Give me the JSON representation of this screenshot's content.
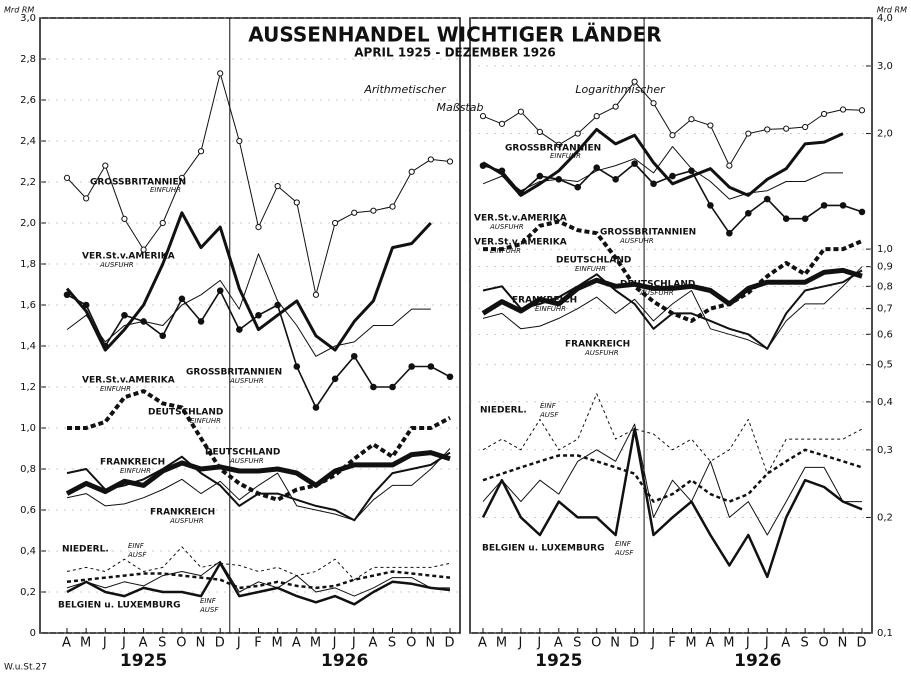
{
  "title": "AUSSENHANDEL WICHTIGER LÄNDER",
  "subtitle": "APRIL 1925 - DEZEMBER 1926",
  "scale_word": "Maßstab",
  "source": "W.u.St.27",
  "chart_data": [
    {
      "type": "line",
      "unit": "Mrd RM",
      "scale_note": "Arithmetischer",
      "log_scale": false,
      "years": [
        "1925",
        "1926"
      ],
      "categories": [
        "A",
        "M",
        "J",
        "J",
        "A",
        "S",
        "O",
        "N",
        "D",
        "J",
        "F",
        "M",
        "A",
        "M",
        "J",
        "J",
        "A",
        "S",
        "O",
        "N",
        "D"
      ],
      "ylim": [
        0,
        3.0
      ],
      "yticks": [
        0,
        {
          "value": 0.2,
          "label": "0,2"
        },
        {
          "value": 0.4,
          "label": "0,4"
        },
        {
          "value": 0.6,
          "label": "0,6"
        },
        {
          "value": 0.8,
          "label": "0,8"
        },
        {
          "value": 1.0,
          "label": "1,0"
        },
        {
          "value": 1.2,
          "label": "1,2"
        },
        {
          "value": 1.4,
          "label": "1,4"
        },
        {
          "value": 1.6,
          "label": "1,6"
        },
        {
          "value": 1.8,
          "label": "1,8"
        },
        {
          "value": 2.0,
          "label": "2,0"
        },
        {
          "value": 2.2,
          "label": "2,2"
        },
        {
          "value": 2.4,
          "label": "2,4"
        },
        {
          "value": 2.6,
          "label": "2,6"
        },
        {
          "value": 2.8,
          "label": "2,8"
        },
        {
          "value": 3.0,
          "label": "3,0"
        }
      ],
      "series": [
        {
          "name": "GROSSBRITANNIEN",
          "flow": "EINFUHR",
          "color": "#111",
          "width": 1,
          "dash": "",
          "marker": "open",
          "values": [
            2.22,
            2.12,
            2.28,
            2.02,
            1.87,
            2.0,
            2.22,
            2.35,
            2.73,
            2.4,
            1.98,
            2.18,
            2.1,
            1.65,
            2.0,
            2.05,
            2.06,
            2.08,
            2.25,
            2.31,
            2.3
          ]
        },
        {
          "name": "GROSSBRITANNIEN",
          "flow": "AUSFUHR",
          "color": "#111",
          "width": 1.6,
          "dash": "",
          "marker": "filled",
          "values": [
            1.65,
            1.6,
            1.4,
            1.55,
            1.52,
            1.45,
            1.63,
            1.52,
            1.67,
            1.48,
            1.55,
            1.6,
            1.3,
            1.1,
            1.24,
            1.35,
            1.2,
            1.2,
            1.3,
            1.3,
            1.25
          ]
        },
        {
          "name": "VER.St.v.AMERIKA",
          "flow": "AUSFUHR",
          "color": "#111",
          "width": 3,
          "dash": "",
          "marker": "none",
          "values": [
            1.68,
            1.57,
            1.38,
            1.48,
            1.6,
            1.8,
            2.05,
            1.88,
            1.98,
            1.68,
            1.48,
            1.55,
            1.62,
            1.45,
            1.38,
            1.52,
            1.62,
            1.88,
            1.9,
            2.0,
            null
          ]
        },
        {
          "name": "VER.St.v.AMERIKA",
          "flow": "EINFUHR",
          "color": "#111",
          "width": 1,
          "dash": "",
          "marker": "none",
          "values": [
            1.48,
            1.55,
            1.42,
            1.5,
            1.52,
            1.5,
            1.6,
            1.65,
            1.72,
            1.58,
            1.85,
            1.62,
            1.5,
            1.35,
            1.4,
            1.42,
            1.5,
            1.5,
            1.58,
            1.58,
            null
          ]
        },
        {
          "name": "DEUTSCHLAND",
          "flow": "EINFUHR",
          "color": "#111",
          "width": 4,
          "dash": "5 3",
          "marker": "none",
          "values": [
            1.0,
            1.0,
            1.03,
            1.15,
            1.18,
            1.12,
            1.1,
            0.95,
            0.8,
            0.73,
            0.68,
            0.65,
            0.7,
            0.72,
            0.77,
            0.85,
            0.92,
            0.86,
            1.0,
            1.0,
            1.05
          ]
        },
        {
          "name": "DEUTSCHLAND",
          "flow": "AUSFUHR",
          "color": "#111",
          "width": 5,
          "dash": "",
          "marker": "none",
          "values": [
            0.68,
            0.73,
            0.69,
            0.74,
            0.72,
            0.79,
            0.83,
            0.8,
            0.81,
            0.79,
            0.79,
            0.8,
            0.78,
            0.72,
            0.79,
            0.82,
            0.82,
            0.82,
            0.87,
            0.88,
            0.85
          ]
        },
        {
          "name": "FRANKREICH",
          "flow": "EINFUHR",
          "color": "#111",
          "width": 2,
          "dash": "",
          "marker": "none",
          "values": [
            0.78,
            0.8,
            0.7,
            0.72,
            0.75,
            0.8,
            0.86,
            0.78,
            0.72,
            0.62,
            0.68,
            0.68,
            0.65,
            0.62,
            0.6,
            0.55,
            0.68,
            0.78,
            0.8,
            0.82,
            0.88
          ]
        },
        {
          "name": "FRANKREICH",
          "flow": "AUSFUHR",
          "color": "#111",
          "width": 1,
          "dash": "",
          "marker": "none",
          "values": [
            0.66,
            0.68,
            0.62,
            0.63,
            0.66,
            0.7,
            0.75,
            0.68,
            0.74,
            0.65,
            0.72,
            0.78,
            0.62,
            0.6,
            0.58,
            0.55,
            0.65,
            0.72,
            0.72,
            0.8,
            0.9
          ]
        },
        {
          "name": "NIEDERL.",
          "flow": "EINF",
          "color": "#111",
          "width": 1,
          "dash": "3 3",
          "marker": "none",
          "values": [
            0.3,
            0.32,
            0.3,
            0.36,
            0.3,
            0.32,
            0.42,
            0.32,
            0.34,
            0.33,
            0.3,
            0.32,
            0.28,
            0.3,
            0.36,
            0.26,
            0.32,
            0.32,
            0.32,
            0.32,
            0.34
          ]
        },
        {
          "name": "NIEDERL.",
          "flow": "AUSF",
          "color": "#111",
          "width": 2.5,
          "dash": "4 3",
          "marker": "none",
          "values": [
            0.25,
            0.26,
            0.27,
            0.28,
            0.29,
            0.29,
            0.28,
            0.27,
            0.26,
            0.22,
            0.23,
            0.25,
            0.23,
            0.22,
            0.23,
            0.26,
            0.28,
            0.3,
            0.29,
            0.28,
            0.27
          ]
        },
        {
          "name": "BELGIEN u. LUXEMBURG",
          "flow": "EINF",
          "color": "#111",
          "width": 1,
          "dash": "",
          "marker": "none",
          "values": [
            0.22,
            0.25,
            0.22,
            0.25,
            0.23,
            0.28,
            0.3,
            0.28,
            0.35,
            0.2,
            0.25,
            0.22,
            0.28,
            0.2,
            0.22,
            0.18,
            0.22,
            0.27,
            0.27,
            0.22,
            0.22
          ]
        },
        {
          "name": "BELGIEN u. LUXEMBURG",
          "flow": "AUSF",
          "color": "#111",
          "width": 2.5,
          "dash": "",
          "marker": "none",
          "values": [
            0.2,
            0.25,
            0.2,
            0.18,
            0.22,
            0.2,
            0.2,
            0.18,
            0.34,
            0.18,
            0.2,
            0.22,
            0.18,
            0.15,
            0.18,
            0.14,
            0.2,
            0.25,
            0.24,
            0.22,
            0.21
          ]
        }
      ]
    },
    {
      "type": "line",
      "unit": "Mrd RM",
      "scale_note": "Logarithmischer",
      "log_scale": true,
      "years": [
        "1925",
        "1926"
      ],
      "categories": [
        "A",
        "M",
        "J",
        "J",
        "A",
        "S",
        "O",
        "N",
        "D",
        "J",
        "F",
        "M",
        "A",
        "M",
        "J",
        "J",
        "A",
        "S",
        "O",
        "N",
        "D"
      ],
      "ylim": [
        0.1,
        4.0
      ],
      "yticks": [
        {
          "value": 0.1,
          "label": "0,1"
        },
        {
          "value": 0.2,
          "label": "0,2"
        },
        {
          "value": 0.3,
          "label": "0,3"
        },
        {
          "value": 0.4,
          "label": "0,4"
        },
        {
          "value": 0.5,
          "label": "0,5"
        },
        {
          "value": 0.6,
          "label": "0,6"
        },
        {
          "value": 0.7,
          "label": "0,7"
        },
        {
          "value": 0.8,
          "label": "0,8"
        },
        {
          "value": 0.9,
          "label": "0,9"
        },
        {
          "value": 1.0,
          "label": "1,0"
        },
        {
          "value": 2.0,
          "label": "2,0"
        },
        {
          "value": 3.0,
          "label": "3,0"
        },
        {
          "value": 4.0,
          "label": "4,0"
        }
      ],
      "series": [
        {
          "name": "GROSSBRITANNIEN",
          "flow": "EINFUHR",
          "color": "#111",
          "width": 1,
          "dash": "",
          "marker": "open",
          "values": [
            2.22,
            2.12,
            2.28,
            2.02,
            1.87,
            2.0,
            2.22,
            2.35,
            2.73,
            2.4,
            1.98,
            2.18,
            2.1,
            1.65,
            2.0,
            2.05,
            2.06,
            2.08,
            2.25,
            2.31,
            2.3
          ]
        },
        {
          "name": "GROSSBRITANNIEN",
          "flow": "AUSFUHR",
          "color": "#111",
          "width": 1.6,
          "dash": "",
          "marker": "filled",
          "values": [
            1.65,
            1.6,
            1.4,
            1.55,
            1.52,
            1.45,
            1.63,
            1.52,
            1.67,
            1.48,
            1.55,
            1.6,
            1.3,
            1.1,
            1.24,
            1.35,
            1.2,
            1.2,
            1.3,
            1.3,
            1.25
          ]
        },
        {
          "name": "VER.St.v.AMERIKA",
          "flow": "AUSFUHR",
          "color": "#111",
          "width": 3,
          "dash": "",
          "marker": "none",
          "values": [
            1.68,
            1.57,
            1.38,
            1.48,
            1.6,
            1.8,
            2.05,
            1.88,
            1.98,
            1.68,
            1.48,
            1.55,
            1.62,
            1.45,
            1.38,
            1.52,
            1.62,
            1.88,
            1.9,
            2.0,
            null
          ]
        },
        {
          "name": "VER.St.v.AMERIKA",
          "flow": "EINFUHR",
          "color": "#111",
          "width": 1,
          "dash": "",
          "marker": "none",
          "values": [
            1.48,
            1.55,
            1.42,
            1.5,
            1.52,
            1.5,
            1.6,
            1.65,
            1.72,
            1.58,
            1.85,
            1.62,
            1.5,
            1.35,
            1.4,
            1.42,
            1.5,
            1.5,
            1.58,
            1.58,
            null
          ]
        },
        {
          "name": "DEUTSCHLAND",
          "flow": "EINFUHR",
          "color": "#111",
          "width": 4,
          "dash": "5 3",
          "marker": "none",
          "values": [
            1.0,
            1.0,
            1.03,
            1.15,
            1.18,
            1.12,
            1.1,
            0.95,
            0.8,
            0.73,
            0.68,
            0.65,
            0.7,
            0.72,
            0.77,
            0.85,
            0.92,
            0.86,
            1.0,
            1.0,
            1.05
          ]
        },
        {
          "name": "DEUTSCHLAND",
          "flow": "AUSFUHR",
          "color": "#111",
          "width": 5,
          "dash": "",
          "marker": "none",
          "values": [
            0.68,
            0.73,
            0.69,
            0.74,
            0.72,
            0.79,
            0.83,
            0.8,
            0.81,
            0.79,
            0.79,
            0.8,
            0.78,
            0.72,
            0.79,
            0.82,
            0.82,
            0.82,
            0.87,
            0.88,
            0.85
          ]
        },
        {
          "name": "FRANKREICH",
          "flow": "EINFUHR",
          "color": "#111",
          "width": 2,
          "dash": "",
          "marker": "none",
          "values": [
            0.78,
            0.8,
            0.7,
            0.72,
            0.75,
            0.8,
            0.86,
            0.78,
            0.72,
            0.62,
            0.68,
            0.68,
            0.65,
            0.62,
            0.6,
            0.55,
            0.68,
            0.78,
            0.8,
            0.82,
            0.88
          ]
        },
        {
          "name": "FRANKREICH",
          "flow": "AUSFUHR",
          "color": "#111",
          "width": 1,
          "dash": "",
          "marker": "none",
          "values": [
            0.66,
            0.68,
            0.62,
            0.63,
            0.66,
            0.7,
            0.75,
            0.68,
            0.74,
            0.65,
            0.72,
            0.78,
            0.62,
            0.6,
            0.58,
            0.55,
            0.65,
            0.72,
            0.72,
            0.8,
            0.9
          ]
        },
        {
          "name": "NIEDERL.",
          "flow": "EINF",
          "color": "#111",
          "width": 1,
          "dash": "3 3",
          "marker": "none",
          "values": [
            0.3,
            0.32,
            0.3,
            0.36,
            0.3,
            0.32,
            0.42,
            0.32,
            0.34,
            0.33,
            0.3,
            0.32,
            0.28,
            0.3,
            0.36,
            0.26,
            0.32,
            0.32,
            0.32,
            0.32,
            0.34
          ]
        },
        {
          "name": "NIEDERL.",
          "flow": "AUSF",
          "color": "#111",
          "width": 2.5,
          "dash": "4 3",
          "marker": "none",
          "values": [
            0.25,
            0.26,
            0.27,
            0.28,
            0.29,
            0.29,
            0.28,
            0.27,
            0.26,
            0.22,
            0.23,
            0.25,
            0.23,
            0.22,
            0.23,
            0.26,
            0.28,
            0.3,
            0.29,
            0.28,
            0.27
          ]
        },
        {
          "name": "BELGIEN u. LUXEMBURG",
          "flow": "EINF",
          "color": "#111",
          "width": 1,
          "dash": "",
          "marker": "none",
          "values": [
            0.22,
            0.25,
            0.22,
            0.25,
            0.23,
            0.28,
            0.3,
            0.28,
            0.35,
            0.2,
            0.25,
            0.22,
            0.28,
            0.2,
            0.22,
            0.18,
            0.22,
            0.27,
            0.27,
            0.22,
            0.22
          ]
        },
        {
          "name": "BELGIEN u. LUXEMBURG",
          "flow": "AUSF",
          "color": "#111",
          "width": 2.5,
          "dash": "",
          "marker": "none",
          "values": [
            0.2,
            0.25,
            0.2,
            0.18,
            0.22,
            0.2,
            0.2,
            0.18,
            0.34,
            0.18,
            0.2,
            0.22,
            0.18,
            0.15,
            0.18,
            0.14,
            0.2,
            0.25,
            0.24,
            0.22,
            0.21
          ]
        }
      ]
    }
  ]
}
